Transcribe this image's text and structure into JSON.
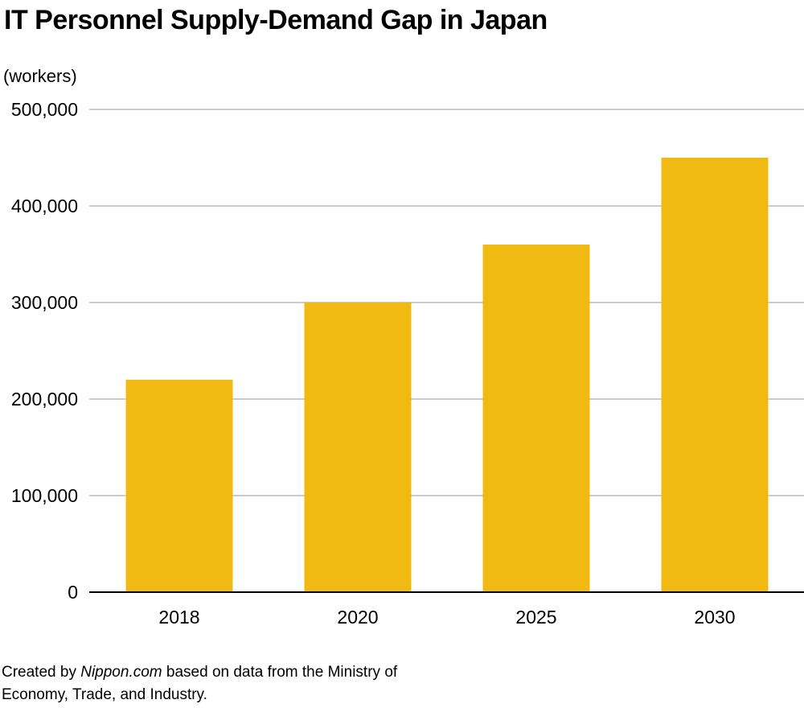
{
  "chart_data": {
    "type": "bar",
    "title": "IT Personnel Supply-Demand Gap in Japan",
    "ylabel": "(workers)",
    "xlabel": "",
    "categories": [
      "2018",
      "2020",
      "2025",
      "2030"
    ],
    "values": [
      220000,
      300000,
      360000,
      450000
    ],
    "ylim": [
      0,
      500000
    ],
    "yticks": [
      0,
      100000,
      200000,
      300000,
      400000,
      500000
    ],
    "ytick_labels": [
      "0",
      "100,000",
      "200,000",
      "300,000",
      "400,000",
      "500,000"
    ],
    "grid": true,
    "bar_color": "#F1BA12",
    "grid_color": "#CCCCCC"
  },
  "footnote": {
    "prefix": "Created by ",
    "source_name": "Nippon.com",
    "suffix": " based on data from the Ministry of",
    "line2": "Economy, Trade, and Industry."
  }
}
